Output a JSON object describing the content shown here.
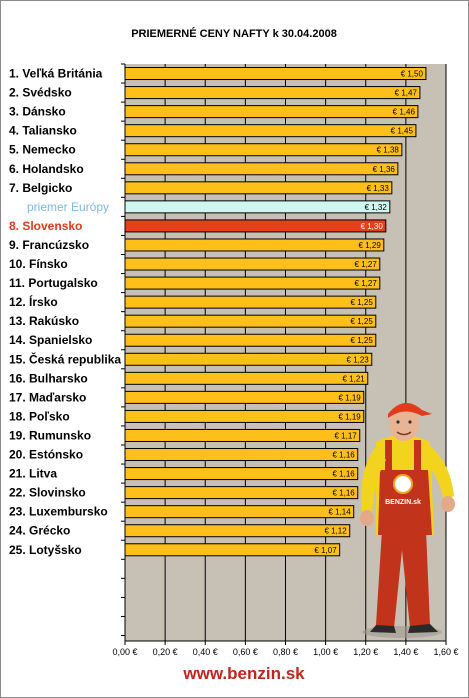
{
  "chart_data": {
    "type": "bar",
    "orientation": "horizontal",
    "title": "PRIEMERNÉ CENY NAFTY k 30.04.2008",
    "categories": [
      "1. Veľká Británia",
      "2. Svédsko",
      "3. Dánsko",
      "4. Taliansko",
      "5. Nemecko",
      "6. Holandsko",
      "7. Belgicko",
      "priemer Európy",
      "8. Slovensko",
      "9. Francúzsko",
      "10. Fínsko",
      "11. Portugalsko",
      "12. Írsko",
      "13. Rakúsko",
      "14. Spanielsko",
      "15. Česká republika",
      "16. Bulharsko",
      "17. Maďarsko",
      "18. Poľsko",
      "19. Rumunsko",
      "20. Estónsko",
      "21. Litva",
      "22. Slovinsko",
      "23. Luxembursko",
      "24. Grécko",
      "25. Lotyšsko"
    ],
    "values": [
      1.5,
      1.47,
      1.46,
      1.45,
      1.38,
      1.36,
      1.33,
      1.32,
      1.3,
      1.29,
      1.27,
      1.27,
      1.25,
      1.25,
      1.25,
      1.23,
      1.21,
      1.19,
      1.19,
      1.17,
      1.16,
      1.16,
      1.16,
      1.14,
      1.12,
      1.07
    ],
    "value_labels": [
      "€ 1,50",
      "€ 1,47",
      "€ 1,46",
      "€ 1,45",
      "€ 1,38",
      "€ 1,36",
      "€ 1,33",
      "€ 1,32",
      "€ 1,30",
      "€ 1,29",
      "€ 1,27",
      "€ 1,27",
      "€ 1,25",
      "€ 1,25",
      "€ 1,25",
      "€ 1,23",
      "€ 1,21",
      "€ 1,19",
      "€ 1,19",
      "€ 1,17",
      "€ 1,16",
      "€ 1,16",
      "€ 1,16",
      "€ 1,14",
      "€ 1,12",
      "€ 1,07"
    ],
    "xlim": [
      0,
      1.6
    ],
    "xticks": [
      "0,00 €",
      "0,20 €",
      "0,40 €",
      "0,60 €",
      "0,80 €",
      "1,00 €",
      "1,20 €",
      "1,40 €",
      "1,60 €"
    ],
    "highlight_index": 8,
    "average_index": 7,
    "grid": true,
    "colors": {
      "bar": "#ffbf1a",
      "bar_average": "#cff7ef",
      "bar_highlight": "#e8401c",
      "plot_background": "#c6c1b4",
      "gridline": "#000000",
      "footer": "#c0261a"
    }
  },
  "footer": {
    "url": "www.benzin.sk"
  },
  "mascot": {
    "logo_text": "BENZIN.sk"
  }
}
